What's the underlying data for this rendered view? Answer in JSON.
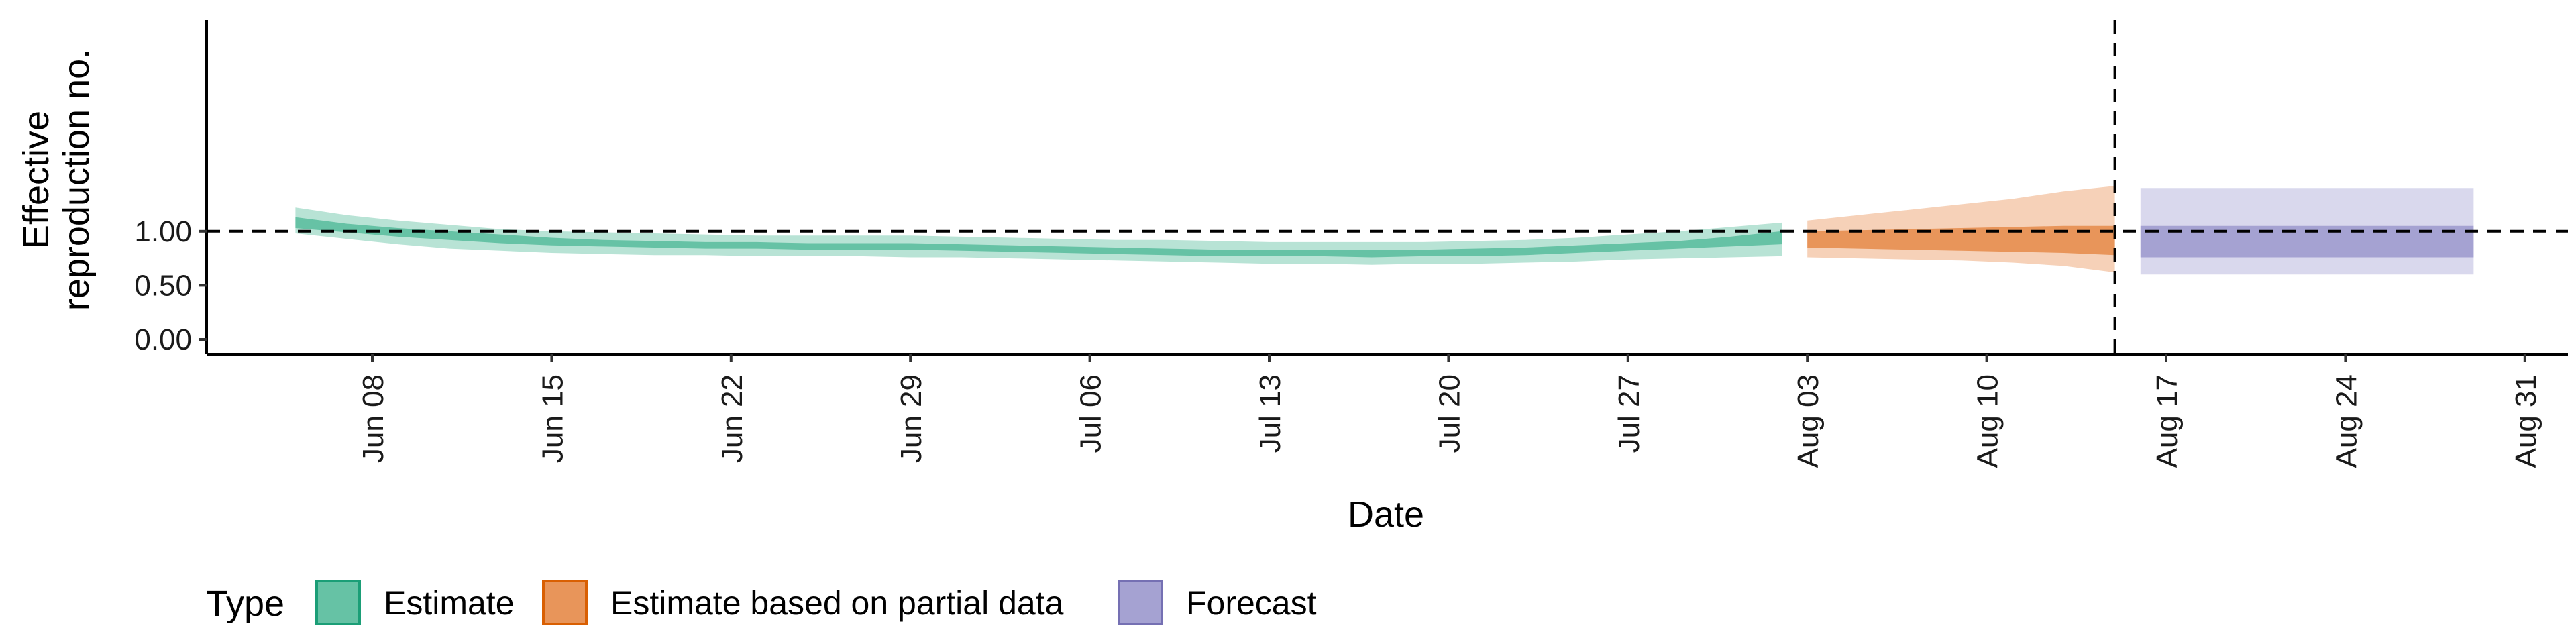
{
  "chart_data": {
    "type": "area",
    "title": "",
    "xlabel": "Date",
    "ylabel_line1": "Effective",
    "ylabel_line2": "reproduction no.",
    "ylim": [
      0,
      1.45
    ],
    "y_ticks": [
      0,
      0.5,
      1.0
    ],
    "y_tick_labels": [
      "0.00",
      "0.50",
      "1.00"
    ],
    "x_range": [
      "2020-05-31",
      "2020-09-02"
    ],
    "x_ticks": [
      "2020-06-08",
      "2020-06-15",
      "2020-06-22",
      "2020-06-29",
      "2020-07-06",
      "2020-07-13",
      "2020-07-20",
      "2020-07-27",
      "2020-08-03",
      "2020-08-10",
      "2020-08-17",
      "2020-08-24",
      "2020-08-31"
    ],
    "x_tick_labels": [
      "Jun 08",
      "Jun 15",
      "Jun 22",
      "Jun 29",
      "Jul 06",
      "Jul 13",
      "Jul 20",
      "Jul 27",
      "Aug 03",
      "Aug 10",
      "Aug 17",
      "Aug 24",
      "Aug 31"
    ],
    "reference_hline": 1.0,
    "reference_vline": "2020-08-15",
    "grid": false,
    "legend_position": "bottom-left",
    "legend_title": "Type",
    "colors": {
      "estimate_inner": "#66c2a5",
      "estimate_outer": "#b8e3d5",
      "estimate_border": "#1b9e77",
      "partial_inner": "#e8955a",
      "partial_outer": "#f6d1b8",
      "partial_border": "#d95f02",
      "forecast_inner": "#a5a2d2",
      "forecast_outer": "#d9d8ed",
      "forecast_border": "#7570b3"
    },
    "series": [
      {
        "name": "Estimate",
        "dates": [
          "2020-06-05",
          "2020-06-07",
          "2020-06-09",
          "2020-06-11",
          "2020-06-13",
          "2020-06-15",
          "2020-06-17",
          "2020-06-19",
          "2020-06-21",
          "2020-06-23",
          "2020-06-25",
          "2020-06-27",
          "2020-06-29",
          "2020-07-01",
          "2020-07-03",
          "2020-07-05",
          "2020-07-07",
          "2020-07-09",
          "2020-07-11",
          "2020-07-13",
          "2020-07-15",
          "2020-07-17",
          "2020-07-19",
          "2020-07-21",
          "2020-07-23",
          "2020-07-25",
          "2020-07-27",
          "2020-07-29",
          "2020-07-31",
          "2020-08-02"
        ],
        "inner_lower": [
          1.03,
          0.99,
          0.95,
          0.92,
          0.89,
          0.87,
          0.86,
          0.85,
          0.84,
          0.84,
          0.83,
          0.83,
          0.83,
          0.82,
          0.81,
          0.8,
          0.79,
          0.78,
          0.77,
          0.77,
          0.77,
          0.76,
          0.77,
          0.77,
          0.78,
          0.8,
          0.82,
          0.84,
          0.86,
          0.88
        ],
        "inner_upper": [
          1.13,
          1.07,
          1.03,
          1.0,
          0.97,
          0.94,
          0.92,
          0.91,
          0.9,
          0.9,
          0.89,
          0.89,
          0.89,
          0.88,
          0.87,
          0.86,
          0.85,
          0.84,
          0.83,
          0.83,
          0.83,
          0.83,
          0.83,
          0.84,
          0.85,
          0.87,
          0.89,
          0.91,
          0.95,
          1.0
        ],
        "outer_lower": [
          0.98,
          0.93,
          0.88,
          0.84,
          0.82,
          0.8,
          0.79,
          0.78,
          0.78,
          0.77,
          0.77,
          0.77,
          0.76,
          0.76,
          0.75,
          0.74,
          0.73,
          0.72,
          0.71,
          0.7,
          0.7,
          0.69,
          0.7,
          0.7,
          0.71,
          0.72,
          0.74,
          0.75,
          0.76,
          0.77
        ],
        "outer_upper": [
          1.22,
          1.15,
          1.1,
          1.06,
          1.02,
          1.0,
          0.99,
          0.98,
          0.97,
          0.96,
          0.96,
          0.96,
          0.96,
          0.95,
          0.94,
          0.93,
          0.92,
          0.92,
          0.91,
          0.9,
          0.9,
          0.9,
          0.9,
          0.91,
          0.92,
          0.94,
          0.97,
          1.0,
          1.04,
          1.08
        ]
      },
      {
        "name": "Estimate based on partial data",
        "dates": [
          "2020-08-03",
          "2020-08-05",
          "2020-08-07",
          "2020-08-09",
          "2020-08-11",
          "2020-08-13",
          "2020-08-15"
        ],
        "inner_lower": [
          0.85,
          0.84,
          0.83,
          0.82,
          0.81,
          0.8,
          0.78
        ],
        "inner_upper": [
          1.0,
          1.01,
          1.02,
          1.03,
          1.04,
          1.05,
          1.05
        ],
        "outer_lower": [
          0.76,
          0.75,
          0.74,
          0.73,
          0.71,
          0.68,
          0.62
        ],
        "outer_upper": [
          1.1,
          1.15,
          1.2,
          1.25,
          1.3,
          1.37,
          1.42
        ]
      },
      {
        "name": "Forecast",
        "dates": [
          "2020-08-16",
          "2020-08-29"
        ],
        "inner_lower": [
          0.76,
          0.76
        ],
        "inner_upper": [
          1.05,
          1.05
        ],
        "outer_lower": [
          0.6,
          0.6
        ],
        "outer_upper": [
          1.4,
          1.4
        ]
      }
    ]
  }
}
